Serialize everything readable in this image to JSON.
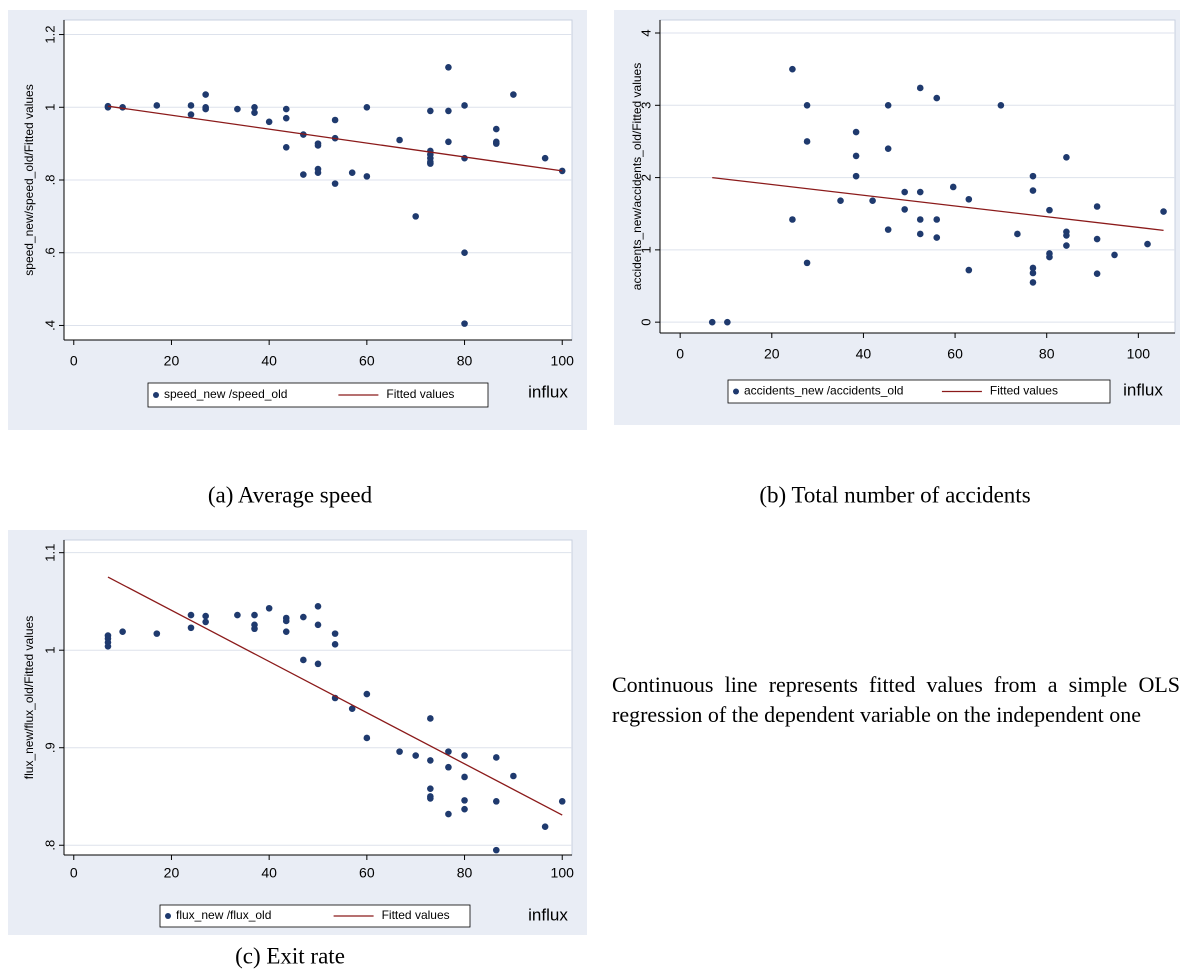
{
  "chart_data": [
    {
      "type": "scatter",
      "caption": "(a) Average speed",
      "y_label": "speed_new/speed_old/Fitted values",
      "x_label": "influx",
      "xlim": [
        -2,
        102
      ],
      "xticks": [
        0,
        20,
        40,
        60,
        80,
        100
      ],
      "ylim": [
        0.36,
        1.24
      ],
      "yticks": [
        {
          "value": 0.4,
          "label": ".4"
        },
        {
          "value": 0.6,
          "label": ".6"
        },
        {
          "value": 0.8,
          "label": ".8"
        },
        1,
        1.2
      ],
      "grid": true,
      "series": [
        {
          "name": "speed_new /speed_old",
          "type": "scatter",
          "color": "#1f3a6e",
          "x": [
            7,
            7,
            10,
            17,
            24,
            24,
            27,
            27,
            27,
            33.5,
            37,
            37,
            40,
            43.5,
            43.5,
            43.5,
            47,
            47,
            50,
            50,
            50,
            50,
            53.5,
            53.5,
            53.5,
            57,
            60,
            60,
            66.7,
            70,
            73,
            73,
            73,
            73,
            73,
            73,
            76.7,
            76.7,
            76.7,
            80,
            80,
            80,
            80,
            86.5,
            86.5,
            86.5,
            90,
            96.5,
            100
          ],
          "values": [
            1.0,
            1.003,
            1.0,
            1.005,
            1.005,
            0.98,
            1.035,
            1.0,
            0.995,
            0.995,
            1.0,
            0.985,
            0.96,
            0.995,
            0.97,
            0.89,
            0.925,
            0.815,
            0.9,
            0.895,
            0.83,
            0.82,
            0.965,
            0.915,
            0.79,
            0.82,
            1.0,
            0.81,
            0.91,
            0.7,
            0.99,
            0.88,
            0.87,
            0.86,
            0.85,
            0.845,
            1.11,
            0.99,
            0.905,
            1.005,
            0.86,
            0.6,
            0.405,
            0.94,
            0.905,
            0.9,
            1.035,
            0.86,
            0.825
          ]
        },
        {
          "name": "Fitted values",
          "type": "line",
          "color": "#8b1a1a",
          "x": [
            7,
            100
          ],
          "values": [
            1.003,
            0.825
          ]
        }
      ]
    },
    {
      "type": "scatter",
      "caption": "(b) Total number of accidents",
      "y_label": "accidents_new/accidents_old/Fitted values",
      "x_label": "influx",
      "xlim": [
        -4.4,
        108
      ],
      "xticks": [
        0,
        20,
        40,
        60,
        80,
        100
      ],
      "ylim": [
        -0.15,
        4.18
      ],
      "yticks": [
        0,
        1,
        2,
        3,
        4
      ],
      "grid": true,
      "series": [
        {
          "name": "accidents_new /accidents_old",
          "type": "scatter",
          "color": "#1f3a6e",
          "x": [
            7,
            10.3,
            24.5,
            24.5,
            27.7,
            27.7,
            27.7,
            35,
            38.4,
            38.4,
            38.4,
            42,
            45.4,
            45.4,
            45.4,
            49,
            49,
            52.4,
            52.4,
            52.4,
            52.4,
            56,
            56,
            56,
            59.6,
            63,
            63,
            70,
            73.6,
            77,
            77,
            77,
            77,
            77,
            80.6,
            80.6,
            80.6,
            84.3,
            84.3,
            84.3,
            84.3,
            91,
            91,
            91,
            94.8,
            102,
            105.5
          ],
          "values": [
            0,
            0,
            3.5,
            1.42,
            3.0,
            2.5,
            0.82,
            1.68,
            2.63,
            2.3,
            2.02,
            1.68,
            3.0,
            2.4,
            1.28,
            1.8,
            1.56,
            3.24,
            1.8,
            1.42,
            1.22,
            3.1,
            1.42,
            1.17,
            1.87,
            1.7,
            0.72,
            3.0,
            1.22,
            2.02,
            1.82,
            0.75,
            0.68,
            0.55,
            1.55,
            0.95,
            0.9,
            2.28,
            1.25,
            1.2,
            1.06,
            1.6,
            1.15,
            0.67,
            0.93,
            1.08,
            1.53
          ]
        },
        {
          "name": "Fitted values",
          "type": "line",
          "color": "#8b1a1a",
          "x": [
            7,
            105.5
          ],
          "values": [
            2.0,
            1.27
          ]
        }
      ]
    },
    {
      "type": "scatter",
      "caption": "(c) Exit rate",
      "y_label": "flux_new/flux_old/Fitted values",
      "x_label": "influx",
      "xlim": [
        -2,
        102
      ],
      "xticks": [
        0,
        20,
        40,
        60,
        80,
        100
      ],
      "ylim": [
        0.79,
        1.113
      ],
      "yticks": [
        {
          "value": 0.8,
          "label": ".8"
        },
        {
          "value": 0.9,
          "label": ".9"
        },
        1,
        1.1
      ],
      "grid": true,
      "series": [
        {
          "name": "flux_new /flux_old",
          "type": "scatter",
          "color": "#1f3a6e",
          "x": [
            7,
            7,
            7,
            7,
            10,
            17,
            24,
            24,
            27,
            27,
            33.5,
            37,
            37,
            37,
            40,
            43.5,
            43.5,
            43.5,
            47,
            47,
            50,
            50,
            50,
            53.5,
            53.5,
            53.5,
            57,
            60,
            60,
            66.7,
            70,
            73,
            73,
            73,
            73,
            73,
            76.7,
            76.7,
            76.7,
            80,
            80,
            80,
            80,
            86.5,
            86.5,
            86.5,
            90,
            96.5,
            100
          ],
          "values": [
            1.015,
            1.012,
            1.008,
            1.004,
            1.019,
            1.017,
            1.036,
            1.023,
            1.035,
            1.029,
            1.036,
            1.036,
            1.026,
            1.022,
            1.043,
            1.033,
            1.03,
            1.019,
            1.034,
            0.99,
            1.045,
            1.026,
            0.986,
            1.017,
            1.006,
            0.951,
            0.94,
            0.955,
            0.91,
            0.896,
            0.892,
            0.93,
            0.887,
            0.858,
            0.85,
            0.848,
            0.896,
            0.88,
            0.832,
            0.892,
            0.87,
            0.846,
            0.837,
            0.89,
            0.845,
            0.795,
            0.871,
            0.819,
            0.845
          ]
        },
        {
          "name": "Fitted values",
          "type": "line",
          "color": "#8b1a1a",
          "x": [
            7,
            100
          ],
          "values": [
            1.075,
            0.831
          ]
        }
      ]
    }
  ],
  "note": "Continuous line represents fitted values from a simple OLS regression of the dependent variable on the independent one"
}
